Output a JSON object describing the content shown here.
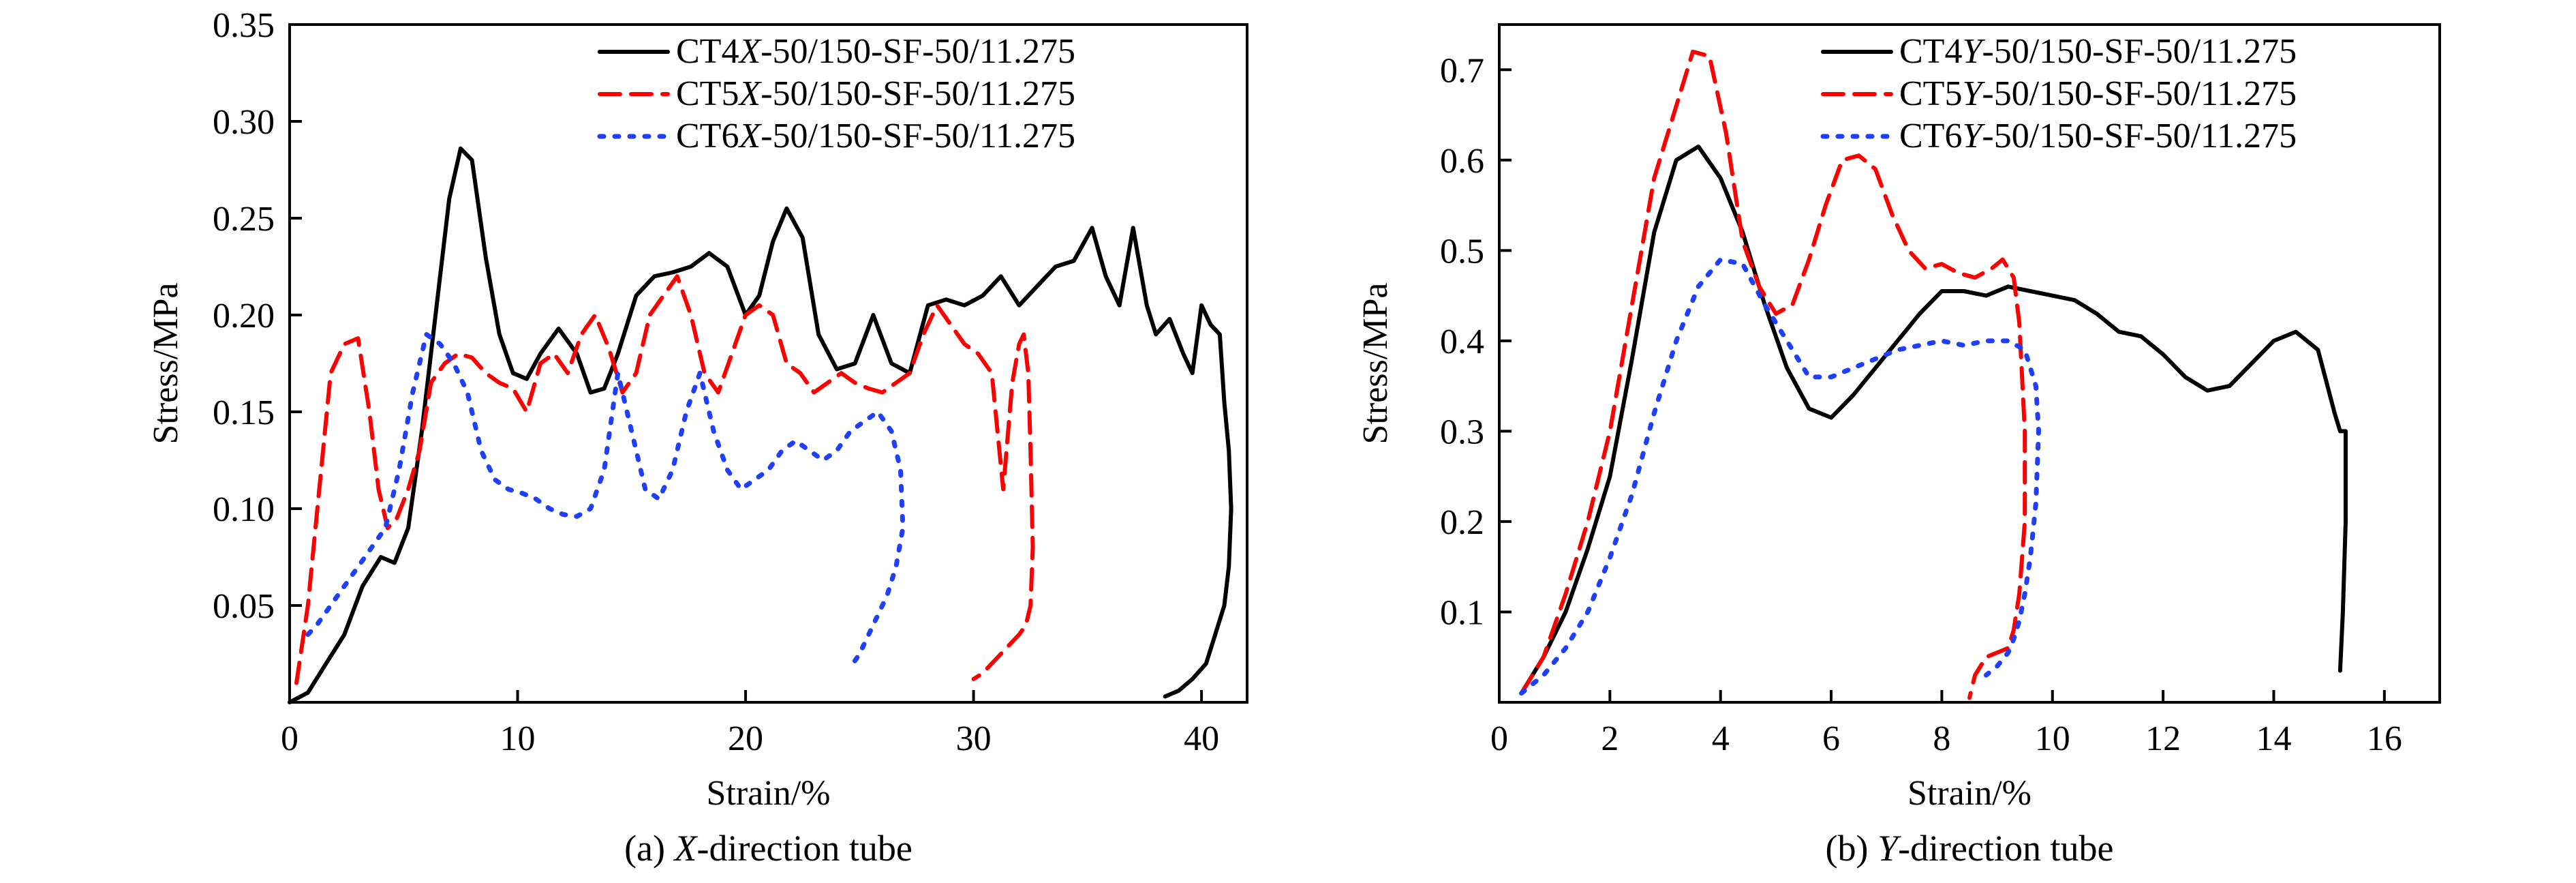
{
  "chart_data": [
    {
      "type": "line",
      "caption_prefix": "(a) ",
      "caption_italic": "X",
      "caption_suffix": "-direction tube",
      "xlabel": "Strain/%",
      "ylabel": "Stress/MPa",
      "xlim": [
        0,
        42
      ],
      "ylim": [
        0,
        0.35
      ],
      "xticks": [
        0,
        10,
        20,
        30,
        40
      ],
      "yticks": [
        0.05,
        0.1,
        0.15,
        0.2,
        0.25,
        0.3,
        0.35
      ],
      "xtick_labels": [
        "0",
        "10",
        "20",
        "30",
        "40"
      ],
      "ytick_labels": [
        "0.05",
        "0.10",
        "0.15",
        "0.20",
        "0.25",
        "0.30",
        "0.35"
      ],
      "grid": false,
      "legend_position": "top-right",
      "series": [
        {
          "name_prefix": "CT4",
          "name_italic": "X",
          "name_suffix": "-50/150-SF-50/11.275",
          "color": "#000000",
          "dash": "solid",
          "x": [
            0,
            0.8,
            1.6,
            2.4,
            3.2,
            4.0,
            4.6,
            5.2,
            5.8,
            6.4,
            7.0,
            7.5,
            8.0,
            8.6,
            9.2,
            9.8,
            10.4,
            11.0,
            11.8,
            12.6,
            13.2,
            13.8,
            14.4,
            15.2,
            16.0,
            16.8,
            17.6,
            18.4,
            19.2,
            20.0,
            20.6,
            21.2,
            21.8,
            22.5,
            23.2,
            24.0,
            24.8,
            25.6,
            26.4,
            27.2,
            28.0,
            28.8,
            29.6,
            30.4,
            31.2,
            32.0,
            32.8,
            33.6,
            34.4,
            35.2,
            35.8,
            36.4,
            37.0,
            37.6,
            38.0,
            38.6,
            39.2,
            39.6,
            40.0,
            40.4,
            40.8,
            41.0,
            41.2,
            41.3,
            41.2,
            41.0,
            40.6,
            40.2,
            39.6,
            39.0,
            38.4
          ],
          "y": [
            0.0,
            0.005,
            0.02,
            0.035,
            0.06,
            0.075,
            0.072,
            0.09,
            0.14,
            0.2,
            0.26,
            0.286,
            0.28,
            0.23,
            0.19,
            0.17,
            0.167,
            0.18,
            0.193,
            0.18,
            0.16,
            0.162,
            0.18,
            0.21,
            0.22,
            0.222,
            0.225,
            0.232,
            0.225,
            0.2,
            0.21,
            0.238,
            0.255,
            0.24,
            0.19,
            0.172,
            0.175,
            0.2,
            0.175,
            0.17,
            0.205,
            0.208,
            0.205,
            0.21,
            0.22,
            0.205,
            0.215,
            0.225,
            0.228,
            0.245,
            0.22,
            0.205,
            0.245,
            0.205,
            0.19,
            0.198,
            0.18,
            0.17,
            0.205,
            0.195,
            0.19,
            0.155,
            0.13,
            0.1,
            0.07,
            0.05,
            0.035,
            0.02,
            0.012,
            0.006,
            0.003
          ]
        },
        {
          "name_prefix": "CT5",
          "name_italic": "X",
          "name_suffix": "-50/150-SF-50/11.275",
          "color": "#ff0000",
          "dash": "dashed",
          "x": [
            0.3,
            0.8,
            1.3,
            1.8,
            2.4,
            3.0,
            3.5,
            3.9,
            4.3,
            4.7,
            5.2,
            5.7,
            6.2,
            6.8,
            7.4,
            8.0,
            8.6,
            9.2,
            9.8,
            10.4,
            11.0,
            11.6,
            12.2,
            12.8,
            13.4,
            14.0,
            14.6,
            15.2,
            15.8,
            16.4,
            17.0,
            17.6,
            18.2,
            18.8,
            19.4,
            20.0,
            20.6,
            21.2,
            21.8,
            22.4,
            23.0,
            23.6,
            24.2,
            24.8,
            25.4,
            26.0,
            26.6,
            27.2,
            27.8,
            28.4,
            29.0,
            29.6,
            30.2,
            30.8,
            31.3,
            31.7,
            32.0,
            32.2,
            32.4,
            32.5,
            32.6,
            32.5,
            32.3,
            32.0,
            31.6,
            31.2,
            30.8,
            30.4,
            30.0
          ],
          "y": [
            0.01,
            0.05,
            0.11,
            0.17,
            0.185,
            0.188,
            0.15,
            0.11,
            0.09,
            0.095,
            0.11,
            0.13,
            0.165,
            0.175,
            0.18,
            0.178,
            0.17,
            0.165,
            0.162,
            0.15,
            0.175,
            0.18,
            0.17,
            0.19,
            0.2,
            0.183,
            0.16,
            0.17,
            0.2,
            0.21,
            0.22,
            0.2,
            0.17,
            0.16,
            0.18,
            0.2,
            0.205,
            0.2,
            0.175,
            0.17,
            0.16,
            0.165,
            0.17,
            0.165,
            0.162,
            0.16,
            0.165,
            0.17,
            0.19,
            0.205,
            0.195,
            0.185,
            0.18,
            0.17,
            0.11,
            0.165,
            0.185,
            0.19,
            0.17,
            0.13,
            0.08,
            0.05,
            0.04,
            0.035,
            0.03,
            0.025,
            0.02,
            0.015,
            0.012
          ]
        },
        {
          "name_prefix": "CT6",
          "name_italic": "X",
          "name_suffix": "-50/150-SF-50/11.275",
          "color": "#1f3fff",
          "dash": "dotted",
          "x": [
            0.8,
            1.2,
            1.8,
            2.4,
            3.0,
            3.6,
            4.2,
            4.8,
            5.4,
            6.0,
            6.6,
            7.2,
            7.8,
            8.4,
            9.0,
            9.6,
            10.2,
            10.8,
            11.4,
            12.0,
            12.6,
            13.2,
            13.8,
            14.4,
            15.0,
            15.6,
            16.2,
            16.8,
            17.4,
            18.0,
            18.6,
            19.2,
            19.8,
            20.4,
            21.0,
            21.6,
            22.2,
            22.8,
            23.4,
            24.0,
            24.6,
            25.2,
            25.8,
            26.4,
            26.8,
            26.9,
            26.6,
            26.2,
            25.8,
            25.4,
            25.0,
            24.6
          ],
          "y": [
            0.035,
            0.04,
            0.05,
            0.06,
            0.07,
            0.08,
            0.09,
            0.12,
            0.16,
            0.19,
            0.185,
            0.175,
            0.16,
            0.13,
            0.115,
            0.11,
            0.108,
            0.105,
            0.1,
            0.097,
            0.096,
            0.1,
            0.12,
            0.17,
            0.14,
            0.11,
            0.105,
            0.12,
            0.15,
            0.17,
            0.14,
            0.12,
            0.11,
            0.115,
            0.12,
            0.13,
            0.135,
            0.13,
            0.125,
            0.13,
            0.14,
            0.145,
            0.15,
            0.14,
            0.12,
            0.09,
            0.07,
            0.055,
            0.045,
            0.035,
            0.025,
            0.018
          ]
        }
      ]
    },
    {
      "type": "line",
      "caption_prefix": "(b) ",
      "caption_italic": "Y",
      "caption_suffix": "-direction tube",
      "xlabel": "Strain/%",
      "ylabel": "Stress/MPa",
      "xlim": [
        0,
        17
      ],
      "ylim": [
        0,
        0.75
      ],
      "xticks": [
        0,
        2,
        4,
        6,
        8,
        10,
        12,
        14,
        16
      ],
      "yticks": [
        0.1,
        0.2,
        0.3,
        0.4,
        0.5,
        0.6,
        0.7
      ],
      "xtick_labels": [
        "0",
        "2",
        "4",
        "6",
        "8",
        "10",
        "12",
        "14",
        "16"
      ],
      "ytick_labels": [
        "0.1",
        "0.2",
        "0.3",
        "0.4",
        "0.5",
        "0.6",
        "0.7"
      ],
      "grid": false,
      "legend_position": "top-right",
      "series": [
        {
          "name_prefix": "CT4",
          "name_italic": "Y",
          "name_suffix": "-50/150-SF-50/11.275",
          "color": "#000000",
          "dash": "solid",
          "x": [
            0.4,
            0.8,
            1.2,
            1.6,
            2.0,
            2.4,
            2.8,
            3.2,
            3.6,
            4.0,
            4.4,
            4.8,
            5.2,
            5.6,
            6.0,
            6.4,
            6.8,
            7.2,
            7.6,
            8.0,
            8.4,
            8.8,
            9.2,
            9.6,
            10.0,
            10.4,
            10.8,
            11.2,
            11.6,
            12.0,
            12.4,
            12.8,
            13.2,
            13.6,
            14.0,
            14.4,
            14.8,
            15.1,
            15.2,
            15.3,
            15.3,
            15.25,
            15.2
          ],
          "y": [
            0.01,
            0.05,
            0.1,
            0.17,
            0.25,
            0.38,
            0.52,
            0.6,
            0.615,
            0.58,
            0.52,
            0.44,
            0.37,
            0.325,
            0.315,
            0.34,
            0.37,
            0.4,
            0.43,
            0.455,
            0.455,
            0.45,
            0.46,
            0.455,
            0.45,
            0.445,
            0.43,
            0.41,
            0.405,
            0.385,
            0.36,
            0.345,
            0.35,
            0.375,
            0.4,
            0.41,
            0.39,
            0.32,
            0.3,
            0.3,
            0.2,
            0.1,
            0.035
          ]
        },
        {
          "name_prefix": "CT5",
          "name_italic": "Y",
          "name_suffix": "-50/150-SF-50/11.275",
          "color": "#ff0000",
          "dash": "dashed",
          "x": [
            0.4,
            0.8,
            1.2,
            1.6,
            2.0,
            2.4,
            2.8,
            3.2,
            3.5,
            3.8,
            4.1,
            4.4,
            4.7,
            5.0,
            5.3,
            5.6,
            5.9,
            6.2,
            6.5,
            6.8,
            7.1,
            7.4,
            7.7,
            8.0,
            8.3,
            8.6,
            8.9,
            9.1,
            9.3,
            9.4,
            9.5,
            9.5,
            9.4,
            9.3,
            9.2,
            9.0,
            8.8,
            8.6,
            8.5
          ],
          "y": [
            0.01,
            0.05,
            0.12,
            0.2,
            0.3,
            0.44,
            0.58,
            0.66,
            0.72,
            0.715,
            0.63,
            0.51,
            0.46,
            0.43,
            0.44,
            0.49,
            0.55,
            0.6,
            0.605,
            0.59,
            0.54,
            0.5,
            0.48,
            0.485,
            0.475,
            0.47,
            0.48,
            0.49,
            0.47,
            0.42,
            0.3,
            0.2,
            0.12,
            0.08,
            0.06,
            0.055,
            0.05,
            0.03,
            0.005
          ]
        },
        {
          "name_prefix": "CT6",
          "name_italic": "Y",
          "name_suffix": "-50/150-SF-50/11.275",
          "color": "#1f3fff",
          "dash": "dotted",
          "x": [
            0.4,
            0.8,
            1.2,
            1.6,
            2.0,
            2.4,
            2.8,
            3.2,
            3.6,
            4.0,
            4.4,
            4.8,
            5.2,
            5.6,
            6.0,
            6.4,
            6.8,
            7.2,
            7.6,
            8.0,
            8.4,
            8.8,
            9.2,
            9.5,
            9.7,
            9.75,
            9.7,
            9.6,
            9.5,
            9.4,
            9.3,
            9.2,
            9.0,
            8.8
          ],
          "y": [
            0.01,
            0.03,
            0.06,
            0.1,
            0.16,
            0.23,
            0.32,
            0.4,
            0.46,
            0.49,
            0.485,
            0.44,
            0.4,
            0.36,
            0.36,
            0.37,
            0.38,
            0.39,
            0.395,
            0.4,
            0.395,
            0.4,
            0.4,
            0.39,
            0.35,
            0.3,
            0.22,
            0.16,
            0.12,
            0.09,
            0.07,
            0.055,
            0.04,
            0.03
          ]
        }
      ]
    }
  ]
}
